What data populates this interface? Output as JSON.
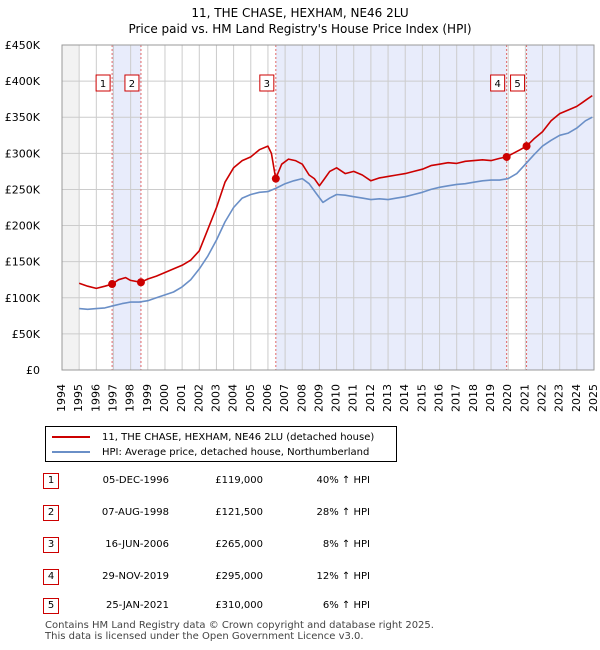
{
  "title_line1": "11, THE CHASE, HEXHAM, NE46 2LU",
  "title_line2": "Price paid vs. HM Land Registry's House Price Index (HPI)",
  "chart_data": {
    "type": "line",
    "y_ticks": [
      "£0",
      "£50K",
      "£100K",
      "£150K",
      "£200K",
      "£250K",
      "£300K",
      "£350K",
      "£400K",
      "£450K"
    ],
    "x_ticks": [
      "1994",
      "1995",
      "1996",
      "1997",
      "1998",
      "1999",
      "2000",
      "2001",
      "2002",
      "2003",
      "2004",
      "2005",
      "2006",
      "2007",
      "2008",
      "2009",
      "2010",
      "2011",
      "2012",
      "2013",
      "2014",
      "2015",
      "2016",
      "2017",
      "2018",
      "2019",
      "2020",
      "2021",
      "2022",
      "2023",
      "2024",
      "2025"
    ],
    "xlim": [
      1994.0,
      2025.0
    ],
    "ylim": [
      0,
      450000
    ],
    "grid": true,
    "colors": {
      "property": "#cc0000",
      "hpi": "#6a8fc7",
      "shade": "#e8ecfb",
      "grid": "#cccccc"
    },
    "series": [
      {
        "name": "11, THE CHASE, HEXHAM, NE46 2LU (detached house)",
        "x": [
          1995.0,
          1995.5,
          1996.0,
          1996.5,
          1996.92,
          1997.3,
          1997.7,
          1998.0,
          1998.6,
          1999.0,
          1999.5,
          2000.0,
          2000.5,
          2001.0,
          2001.5,
          2002.0,
          2002.5,
          2003.0,
          2003.5,
          2004.0,
          2004.5,
          2005.0,
          2005.5,
          2006.0,
          2006.2,
          2006.45,
          2006.8,
          2007.2,
          2007.6,
          2008.0,
          2008.4,
          2008.7,
          2009.0,
          2009.3,
          2009.6,
          2010.0,
          2010.5,
          2011.0,
          2011.5,
          2012.0,
          2012.5,
          2013.0,
          2013.5,
          2014.0,
          2014.5,
          2015.0,
          2015.5,
          2016.0,
          2016.5,
          2017.0,
          2017.5,
          2018.0,
          2018.5,
          2019.0,
          2019.5,
          2019.91,
          2020.3,
          2020.7,
          2021.07,
          2021.5,
          2022.0,
          2022.5,
          2023.0,
          2023.5,
          2024.0,
          2024.3,
          2024.6,
          2024.9
        ],
        "values": [
          120000,
          116000,
          113000,
          116000,
          119000,
          125000,
          128000,
          124000,
          121500,
          126000,
          130000,
          135000,
          140000,
          145000,
          152000,
          165000,
          195000,
          225000,
          260000,
          280000,
          290000,
          295000,
          305000,
          310000,
          300000,
          265000,
          285000,
          292000,
          290000,
          285000,
          270000,
          265000,
          255000,
          265000,
          275000,
          280000,
          272000,
          275000,
          270000,
          262000,
          266000,
          268000,
          270000,
          272000,
          275000,
          278000,
          283000,
          285000,
          287000,
          286000,
          289000,
          290000,
          291000,
          290000,
          293000,
          295000,
          300000,
          305000,
          310000,
          320000,
          330000,
          345000,
          355000,
          360000,
          365000,
          370000,
          375000,
          380000
        ]
      },
      {
        "name": "HPI: Average price, detached house, Northumberland",
        "x": [
          1995.0,
          1995.5,
          1996.0,
          1996.5,
          1997.0,
          1997.5,
          1998.0,
          1998.5,
          1999.0,
          1999.5,
          2000.0,
          2000.5,
          2001.0,
          2001.5,
          2002.0,
          2002.5,
          2003.0,
          2003.5,
          2004.0,
          2004.5,
          2005.0,
          2005.5,
          2006.0,
          2006.5,
          2007.0,
          2007.5,
          2008.0,
          2008.4,
          2008.8,
          2009.2,
          2009.6,
          2010.0,
          2010.5,
          2011.0,
          2011.5,
          2012.0,
          2012.5,
          2013.0,
          2013.5,
          2014.0,
          2014.5,
          2015.0,
          2015.5,
          2016.0,
          2016.5,
          2017.0,
          2017.5,
          2018.0,
          2018.5,
          2019.0,
          2019.5,
          2020.0,
          2020.5,
          2021.0,
          2021.5,
          2022.0,
          2022.5,
          2023.0,
          2023.5,
          2024.0,
          2024.5,
          2024.9
        ],
        "values": [
          85000,
          84000,
          85000,
          86000,
          89000,
          92000,
          94000,
          94000,
          96000,
          100000,
          104000,
          108000,
          115000,
          125000,
          140000,
          158000,
          180000,
          205000,
          225000,
          238000,
          243000,
          246000,
          247000,
          252000,
          258000,
          262000,
          265000,
          258000,
          245000,
          232000,
          238000,
          243000,
          242000,
          240000,
          238000,
          236000,
          237000,
          236000,
          238000,
          240000,
          243000,
          246000,
          250000,
          253000,
          255000,
          257000,
          258000,
          260000,
          262000,
          263000,
          263000,
          265000,
          272000,
          285000,
          298000,
          310000,
          318000,
          325000,
          328000,
          335000,
          345000,
          350000
        ]
      }
    ],
    "sales": [
      {
        "num": "1",
        "x": 1996.92,
        "price": 119000
      },
      {
        "num": "2",
        "x": 1998.6,
        "price": 121500
      },
      {
        "num": "3",
        "x": 2006.46,
        "price": 265000
      },
      {
        "num": "4",
        "x": 2019.91,
        "price": 295000
      },
      {
        "num": "5",
        "x": 2021.07,
        "price": 310000
      }
    ]
  },
  "legend": {
    "property_label": "11, THE CHASE, HEXHAM, NE46 2LU (detached house)",
    "hpi_label": "HPI: Average price, detached house, Northumberland"
  },
  "sales_table": [
    {
      "num": "1",
      "date": "05-DEC-1996",
      "price": "£119,000",
      "hpi": "40% ↑ HPI"
    },
    {
      "num": "2",
      "date": "07-AUG-1998",
      "price": "£121,500",
      "hpi": "28% ↑ HPI"
    },
    {
      "num": "3",
      "date": "16-JUN-2006",
      "price": "£265,000",
      "hpi": "8% ↑ HPI"
    },
    {
      "num": "4",
      "date": "29-NOV-2019",
      "price": "£295,000",
      "hpi": "12% ↑ HPI"
    },
    {
      "num": "5",
      "date": "25-JAN-2021",
      "price": "£310,000",
      "hpi": "6% ↑ HPI"
    }
  ],
  "footer": {
    "line1": "Contains HM Land Registry data © Crown copyright and database right 2025.",
    "line2": "This data is licensed under the Open Government Licence v3.0."
  }
}
